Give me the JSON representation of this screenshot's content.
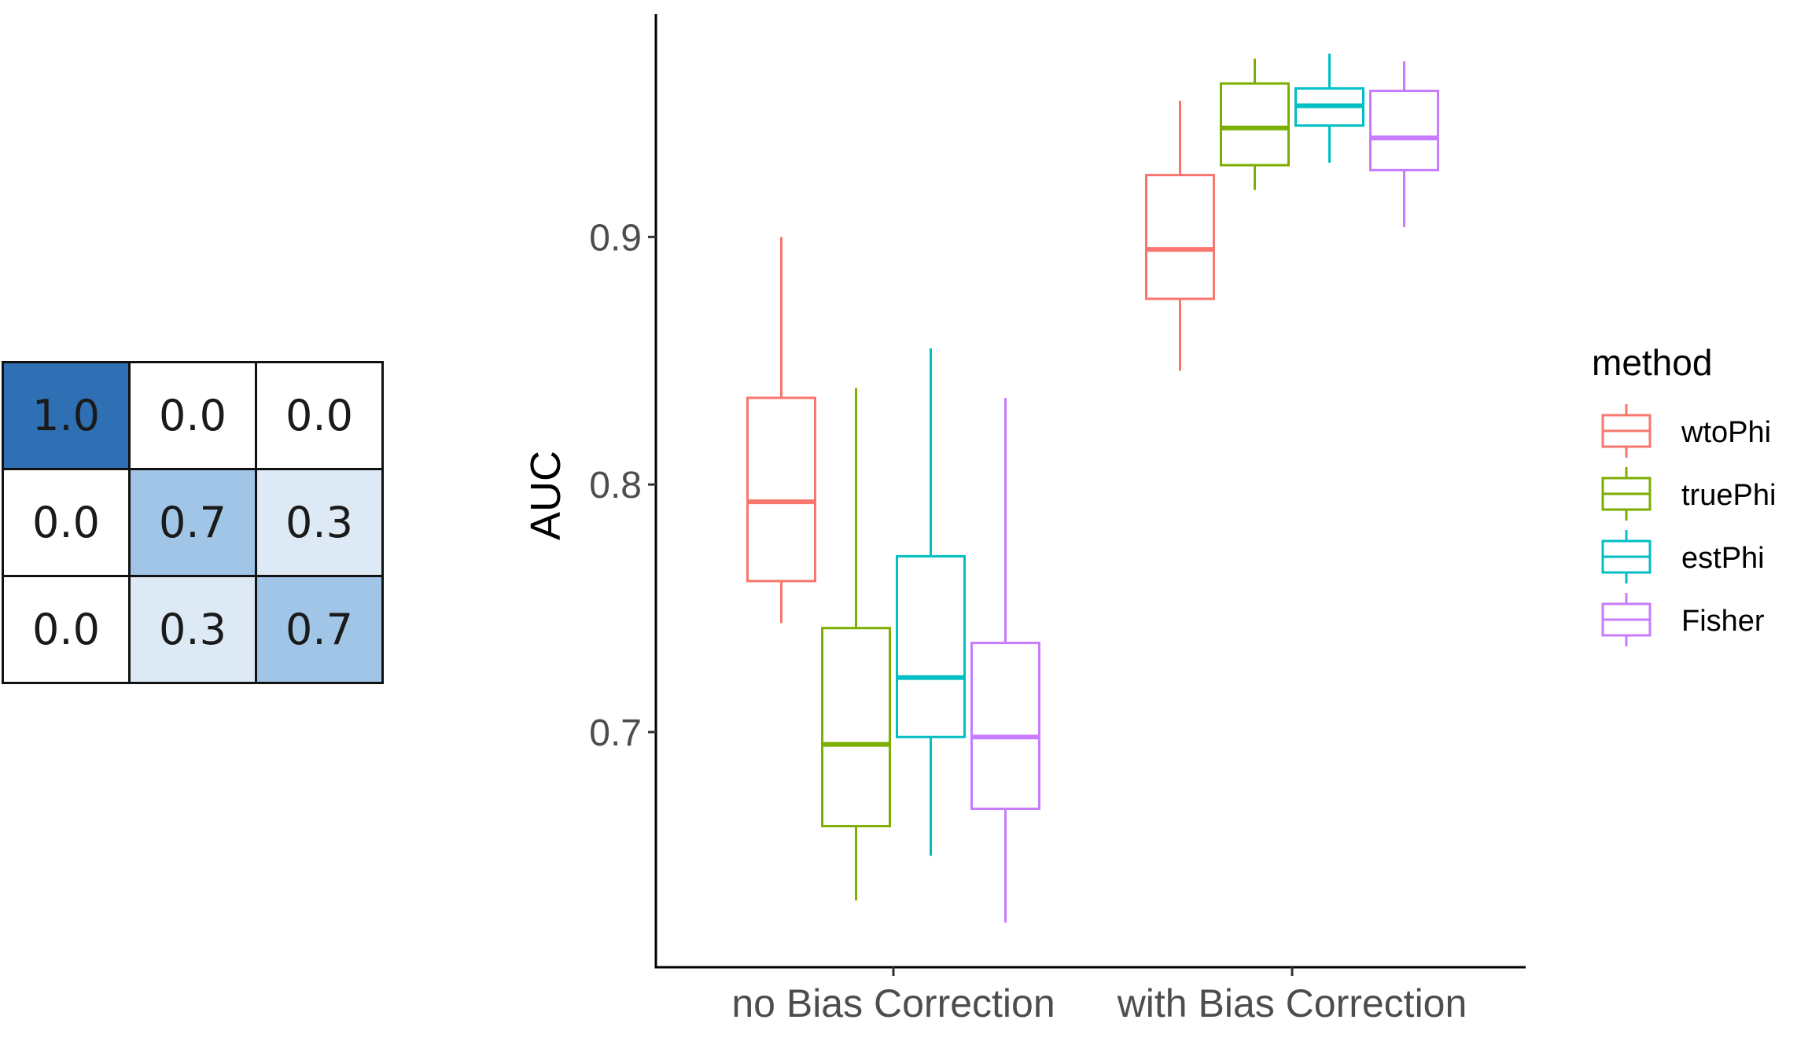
{
  "matrix": {
    "rows": [
      [
        "1.0",
        "0.0",
        "0.0"
      ],
      [
        "0.0",
        "0.7",
        "0.3"
      ],
      [
        "0.0",
        "0.3",
        "0.7"
      ]
    ],
    "values": [
      [
        1.0,
        0.0,
        0.0
      ],
      [
        0.0,
        0.7,
        0.3
      ],
      [
        0.0,
        0.3,
        0.7
      ]
    ]
  },
  "chart_data": {
    "type": "boxplot",
    "ylabel": "AUC",
    "yticks": [
      0.7,
      0.8,
      0.9
    ],
    "ylim": [
      0.605,
      0.99
    ],
    "categories": [
      "no Bias Correction",
      "with Bias Correction"
    ],
    "legend": {
      "title": "method",
      "position": "right"
    },
    "series": [
      {
        "name": "wtoPhi",
        "color": "#F8766D",
        "boxes": [
          {
            "min": 0.744,
            "q1": 0.761,
            "median": 0.793,
            "q3": 0.835,
            "max": 0.9
          },
          {
            "min": 0.846,
            "q1": 0.875,
            "median": 0.895,
            "q3": 0.925,
            "max": 0.955
          }
        ]
      },
      {
        "name": "truePhi",
        "color": "#7CAE00",
        "boxes": [
          {
            "min": 0.632,
            "q1": 0.662,
            "median": 0.695,
            "q3": 0.742,
            "max": 0.839
          },
          {
            "min": 0.919,
            "q1": 0.929,
            "median": 0.944,
            "q3": 0.962,
            "max": 0.972
          }
        ]
      },
      {
        "name": "estPhi",
        "color": "#00BFC4",
        "boxes": [
          {
            "min": 0.65,
            "q1": 0.698,
            "median": 0.722,
            "q3": 0.771,
            "max": 0.855
          },
          {
            "min": 0.93,
            "q1": 0.945,
            "median": 0.953,
            "q3": 0.96,
            "max": 0.974
          }
        ]
      },
      {
        "name": "Fisher",
        "color": "#C77CFF",
        "boxes": [
          {
            "min": 0.623,
            "q1": 0.669,
            "median": 0.698,
            "q3": 0.736,
            "max": 0.835
          },
          {
            "min": 0.904,
            "q1": 0.927,
            "median": 0.94,
            "q3": 0.959,
            "max": 0.971
          }
        ]
      }
    ]
  }
}
